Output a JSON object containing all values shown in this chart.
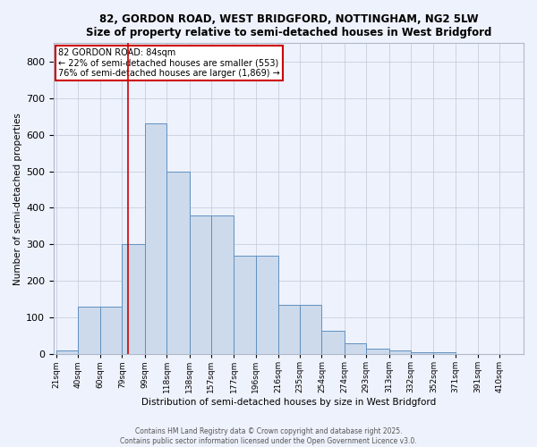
{
  "title_line1": "82, GORDON ROAD, WEST BRIDGFORD, NOTTINGHAM, NG2 5LW",
  "title_line2": "Size of property relative to semi-detached houses in West Bridgford",
  "xlabel": "Distribution of semi-detached houses by size in West Bridgford",
  "ylabel": "Number of semi-detached properties",
  "footer_line1": "Contains HM Land Registry data © Crown copyright and database right 2025.",
  "footer_line2": "Contains public sector information licensed under the Open Government Licence v3.0.",
  "property_size": 84,
  "property_label": "82 GORDON ROAD: 84sqm",
  "annotation_line2": "← 22% of semi-detached houses are smaller (553)",
  "annotation_line3": "76% of semi-detached houses are larger (1,869) →",
  "bar_color": "#ccdaec",
  "bar_edge_color": "#6090c0",
  "red_line_color": "#cc0000",
  "annotation_box_edge": "#cc0000",
  "background_color": "#eef2fc",
  "grid_color": "#c0c8d8",
  "categories": [
    "21sqm",
    "40sqm",
    "60sqm",
    "79sqm",
    "99sqm",
    "118sqm",
    "138sqm",
    "157sqm",
    "177sqm",
    "196sqm",
    "216sqm",
    "235sqm",
    "254sqm",
    "274sqm",
    "293sqm",
    "313sqm",
    "332sqm",
    "352sqm",
    "371sqm",
    "391sqm",
    "410sqm"
  ],
  "bin_left": [
    21,
    40,
    60,
    79,
    99,
    118,
    138,
    157,
    177,
    196,
    216,
    235,
    254,
    274,
    293,
    313,
    332,
    352,
    371,
    391,
    410
  ],
  "bin_right": [
    40,
    60,
    79,
    99,
    118,
    138,
    157,
    177,
    196,
    216,
    235,
    254,
    274,
    293,
    313,
    332,
    352,
    371,
    391,
    410,
    429
  ],
  "values": [
    10,
    130,
    130,
    300,
    630,
    500,
    380,
    380,
    270,
    270,
    135,
    135,
    65,
    30,
    15,
    10,
    5,
    5,
    0,
    0,
    0
  ],
  "ylim": [
    0,
    850
  ],
  "yticks": [
    0,
    100,
    200,
    300,
    400,
    500,
    600,
    700,
    800
  ]
}
